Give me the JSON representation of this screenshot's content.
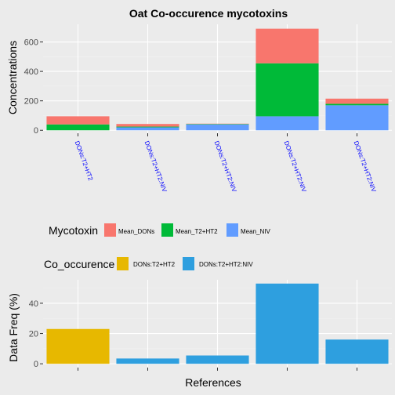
{
  "colors": {
    "panel_bg": "#EBEBEB",
    "grid_major": "#FFFFFF",
    "grid_minor": "#F2F2F2",
    "text": "#000000",
    "axis_text": "#4D4D4D",
    "tick_label_blue": "#0000FF"
  },
  "chart_data": [
    {
      "type": "bar",
      "stacked": true,
      "title": "Oat Co-occurence mycotoxins",
      "xlabel": "",
      "ylabel": "Concentrations",
      "ylim": [
        -20,
        720
      ],
      "yticks": [
        0,
        200,
        400,
        600
      ],
      "categories": [
        "DONs:T2+HT2",
        "DONs:T2+HT2:NIV",
        "DONs:T2+HT2:NIV",
        "DONs:T2+HT2:NIV",
        "DONs:T2+HT2:NIV"
      ],
      "series": [
        {
          "name": "Mean_NIV",
          "color": "#619CFF",
          "values": [
            0,
            20,
            40,
            95,
            170
          ]
        },
        {
          "name": "Mean_T2+HT2",
          "color": "#00BA38",
          "values": [
            40,
            5,
            3,
            360,
            10
          ]
        },
        {
          "name": "Mean_DONs",
          "color": "#F8766D",
          "values": [
            55,
            18,
            2,
            235,
            35
          ]
        }
      ],
      "legend": {
        "title": "Mycotoxin",
        "position": "bottom",
        "entries": [
          "Mean_DONs",
          "Mean_T2+HT2",
          "Mean_NIV"
        ]
      },
      "grid": true
    },
    {
      "type": "bar",
      "title": "",
      "xlabel": "References",
      "ylabel": "Data Freq (%)",
      "ylim": [
        -2.5,
        55.5
      ],
      "yticks": [
        0,
        20,
        40
      ],
      "categories": [
        "DONs:T2+HT2",
        "DONs:T2+HT2:NIV",
        "DONs:T2+HT2:NIV",
        "DONs:T2+HT2:NIV",
        "DONs:T2+HT2:NIV"
      ],
      "values": [
        23,
        3.5,
        5.5,
        53,
        16
      ],
      "fill": [
        "DONs:T2+HT2",
        "DONs:T2+HT2:NIV",
        "DONs:T2+HT2:NIV",
        "DONs:T2+HT2:NIV",
        "DONs:T2+HT2:NIV"
      ],
      "fill_colors": {
        "DONs:T2+HT2": "#E7B800",
        "DONs:T2+HT2:NIV": "#2E9FDF"
      },
      "legend": {
        "title": "Co_occurence",
        "position": "top",
        "entries": [
          "DONs:T2+HT2",
          "DONs:T2+HT2:NIV"
        ]
      },
      "grid": true
    }
  ]
}
